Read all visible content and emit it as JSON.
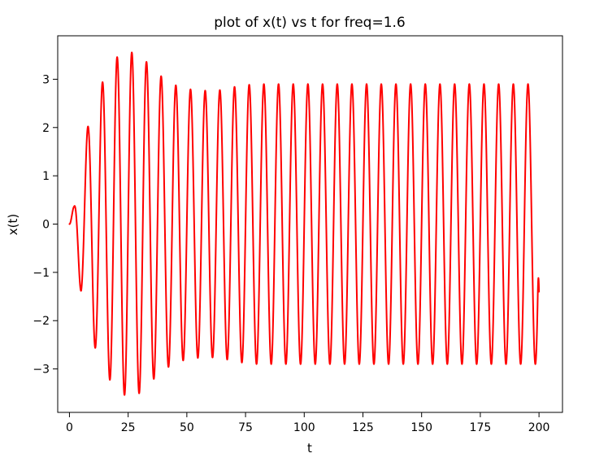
{
  "chart_data": {
    "type": "line",
    "title": "plot of x(t) vs t for freq=1.6",
    "xlabel": "t",
    "ylabel": "x(t)",
    "xlim": [
      -5,
      210
    ],
    "ylim": [
      -3.9,
      3.9
    ],
    "x_ticks": [
      0,
      25,
      50,
      75,
      100,
      125,
      150,
      175,
      200
    ],
    "x_tick_labels": [
      "0",
      "25",
      "50",
      "75",
      "100",
      "125",
      "150",
      "175",
      "200"
    ],
    "y_ticks": [
      -3,
      -2,
      -1,
      0,
      1,
      2,
      3
    ],
    "y_tick_labels": [
      "−3",
      "−2",
      "−1",
      "0",
      "1",
      "2",
      "3"
    ],
    "grid": false,
    "series": [
      {
        "color": "#ff0000",
        "x_range": [
          0,
          200
        ],
        "frequency": 1.6,
        "steady_amplitude": 2.9,
        "end_value": -1.4,
        "envelope": [
          {
            "t": 0,
            "amp": 0.0
          },
          {
            "t": 2,
            "amp": 0.4
          },
          {
            "t": 5,
            "amp": 1.45
          },
          {
            "t": 10,
            "amp": 2.45
          },
          {
            "t": 15,
            "amp": 3.05
          },
          {
            "t": 20,
            "amp": 3.45
          },
          {
            "t": 25,
            "amp": 3.58
          },
          {
            "t": 30,
            "amp": 3.5
          },
          {
            "t": 35,
            "amp": 3.25
          },
          {
            "t": 40,
            "amp": 3.02
          },
          {
            "t": 45,
            "amp": 2.88
          },
          {
            "t": 50,
            "amp": 2.8
          },
          {
            "t": 55,
            "amp": 2.77
          },
          {
            "t": 60,
            "amp": 2.76
          },
          {
            "t": 65,
            "amp": 2.78
          },
          {
            "t": 70,
            "amp": 2.84
          },
          {
            "t": 75,
            "amp": 2.88
          },
          {
            "t": 80,
            "amp": 2.9
          },
          {
            "t": 200,
            "amp": 2.9
          }
        ]
      }
    ]
  }
}
